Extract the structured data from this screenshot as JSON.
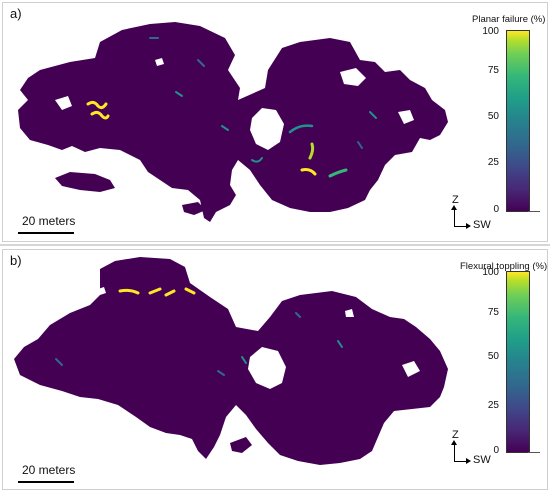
{
  "panel_a": {
    "label": "a)",
    "colorbar_title": "Planar failure  (%)",
    "ticks": [
      "100",
      "75",
      "50",
      "25",
      "0"
    ],
    "scale_label": "20 meters",
    "axis_z": "Z",
    "axis_sw": "SW"
  },
  "panel_b": {
    "label": "b)",
    "colorbar_title": "Flexural toppling (%)",
    "ticks": [
      "100",
      "75",
      "50",
      "25",
      "0"
    ],
    "scale_label": "20 meters",
    "axis_z": "Z",
    "axis_sw": "SW"
  },
  "colors": {
    "base": "#440154",
    "teal": "#21918c",
    "blue": "#31688e",
    "green": "#35b779",
    "yellow": "#fde725"
  },
  "colormap": "viridis"
}
